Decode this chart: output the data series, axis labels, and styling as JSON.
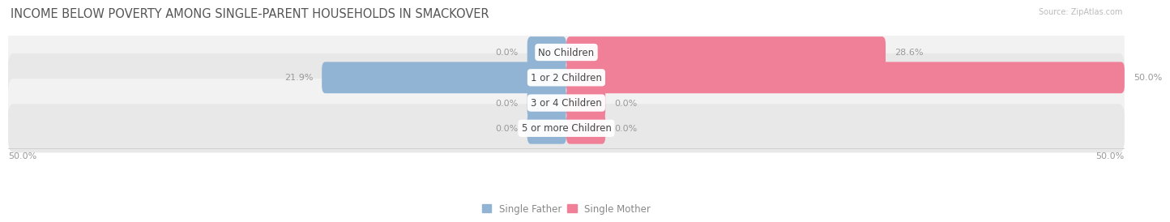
{
  "title": "INCOME BELOW POVERTY AMONG SINGLE-PARENT HOUSEHOLDS IN SMACKOVER",
  "source": "Source: ZipAtlas.com",
  "categories": [
    "No Children",
    "1 or 2 Children",
    "3 or 4 Children",
    "5 or more Children"
  ],
  "single_father": [
    0.0,
    21.9,
    0.0,
    0.0
  ],
  "single_mother": [
    28.6,
    50.0,
    0.0,
    0.0
  ],
  "max_val": 50.0,
  "father_color": "#92b4d4",
  "mother_color": "#f08098",
  "label_color": "#999999",
  "row_bg_colors": [
    "#f2f2f2",
    "#e8e8e8"
  ],
  "row_sep_color": "#ffffff",
  "title_color": "#555555",
  "title_fontsize": 10.5,
  "axis_label_fontsize": 8,
  "bar_label_fontsize": 8,
  "category_fontsize": 8.5,
  "legend_fontsize": 8.5
}
